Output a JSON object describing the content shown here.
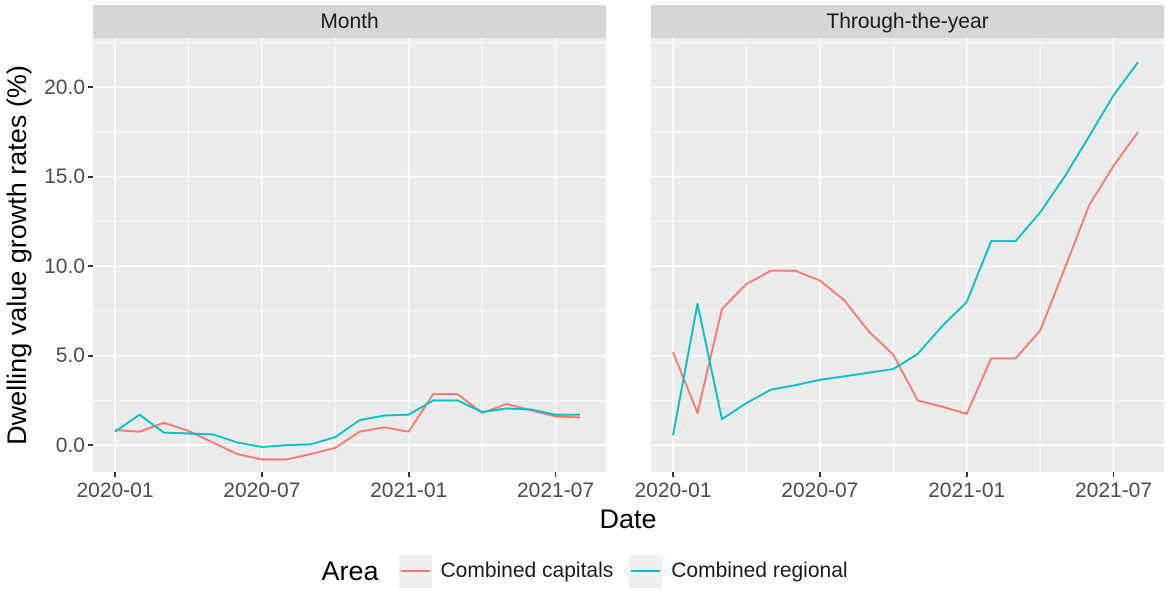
{
  "figure": {
    "background": "#FFFFFF",
    "panel_bg": "#EBEBEB",
    "strip_bg": "#D6D6D6",
    "grid_color": "#FFFFFF",
    "axis_text_color": "#4D4D4D",
    "tick_color": "#333333"
  },
  "y_axis": {
    "title": "Dwelling value growth rates (%)",
    "ticks": [
      {
        "label": "20.0",
        "value": 20
      },
      {
        "label": "15.0",
        "value": 15
      },
      {
        "label": "10.0",
        "value": 10
      },
      {
        "label": "5.0",
        "value": 5
      },
      {
        "label": "0.0",
        "value": 0
      }
    ],
    "minor_values": [
      22.5,
      17.5,
      12.5,
      7.5,
      2.5
    ]
  },
  "x_axis": {
    "title": "Date",
    "ticks": [
      {
        "label": "2020-01",
        "index": 0
      },
      {
        "label": "2020-07",
        "index": 6
      },
      {
        "label": "2021-01",
        "index": 12
      },
      {
        "label": "2021-07",
        "index": 18
      }
    ],
    "minor_indices": [
      3,
      9,
      15
    ]
  },
  "legend": {
    "title": "Area",
    "entries": [
      {
        "label": "Combined capitals",
        "color": "#F8766D"
      },
      {
        "label": "Combined regional",
        "color": "#00BFC4"
      }
    ]
  },
  "chart_data": {
    "type": "line",
    "x": [
      "2020-01",
      "2020-02",
      "2020-03",
      "2020-04",
      "2020-05",
      "2020-06",
      "2020-07",
      "2020-08",
      "2020-09",
      "2020-10",
      "2020-11",
      "2020-12",
      "2021-01",
      "2021-02",
      "2021-03",
      "2021-04",
      "2021-05",
      "2021-06",
      "2021-07",
      "2021-08"
    ],
    "xlabel": "Date",
    "ylabel": "Dwelling value growth rates (%)",
    "ylim": [
      -1.5,
      22.75
    ],
    "y_major_breaks": [
      0,
      5,
      10,
      15,
      20
    ],
    "grid": true,
    "legend_position": "bottom",
    "facets": [
      {
        "label": "Month",
        "series": [
          {
            "name": "Combined capitals",
            "color": "#F8766D",
            "values": [
              0.85,
              0.75,
              1.25,
              0.8,
              0.15,
              -0.5,
              -0.8,
              -0.8,
              -0.5,
              -0.15,
              0.75,
              1.0,
              0.75,
              2.85,
              2.85,
              1.8,
              2.3,
              1.95,
              1.6,
              1.55
            ]
          },
          {
            "name": "Combined regional",
            "color": "#00BFC4",
            "values": [
              0.75,
              1.7,
              0.7,
              0.65,
              0.6,
              0.15,
              -0.1,
              0.0,
              0.05,
              0.45,
              1.4,
              1.65,
              1.7,
              2.5,
              2.5,
              1.85,
              2.05,
              2.0,
              1.7,
              1.7
            ]
          }
        ]
      },
      {
        "label": "Through-the-year",
        "series": [
          {
            "name": "Combined capitals",
            "color": "#F8766D",
            "values": [
              5.2,
              1.8,
              7.6,
              9.0,
              9.75,
              9.75,
              9.2,
              8.1,
              6.35,
              5.05,
              2.5,
              2.15,
              1.75,
              4.85,
              4.85,
              6.4,
              9.85,
              13.4,
              15.6,
              17.5
            ]
          },
          {
            "name": "Combined regional",
            "color": "#00BFC4",
            "values": [
              0.55,
              7.9,
              1.45,
              2.35,
              3.1,
              3.35,
              3.65,
              3.85,
              4.05,
              4.25,
              5.1,
              6.65,
              8.0,
              11.4,
              11.4,
              13.0,
              15.0,
              17.25,
              19.55,
              21.4
            ]
          }
        ]
      }
    ]
  }
}
